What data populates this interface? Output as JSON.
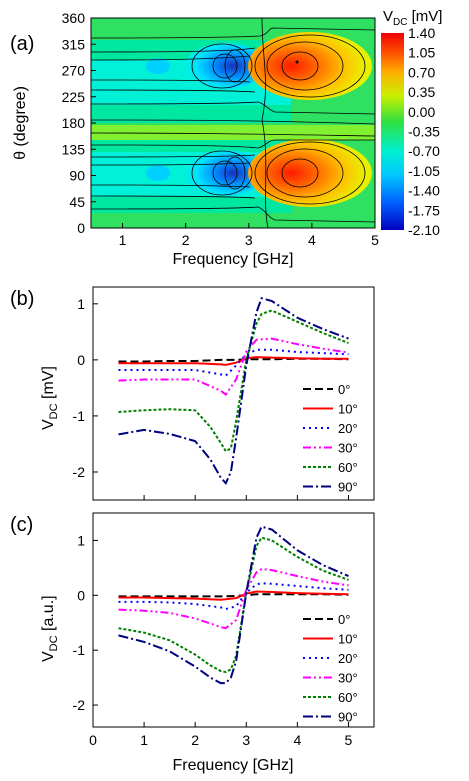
{
  "chart_data": [
    {
      "panel": "(a)",
      "type": "heatmap",
      "xlabel": "Frequency [GHz]",
      "ylabel": "θ (degree)",
      "xlim": [
        0.5,
        5
      ],
      "ylim": [
        0,
        360
      ],
      "x_ticks": [
        "1",
        "2",
        "3",
        "4",
        "5"
      ],
      "y_ticks": [
        "0",
        "45",
        "90",
        "135",
        "180",
        "225",
        "270",
        "315",
        "360"
      ],
      "colorbar": {
        "title_main": "V",
        "title_sub": "DC",
        "title_unit": " [mV]",
        "labels": [
          "1.40",
          "1.05",
          "0.70",
          "0.35",
          "0.00",
          "-0.35",
          "-0.70",
          "-1.05",
          "-1.40",
          "-1.75",
          "-2.10"
        ],
        "min": -2.1,
        "max": 1.4
      },
      "grid": false
    },
    {
      "panel": "(b)",
      "type": "line",
      "ylabel_main": "V",
      "ylabel_sub": "DC",
      "ylabel_unit": " [mV]",
      "xlim": [
        0,
        5.5
      ],
      "ylim": [
        -2.5,
        1.3
      ],
      "y_ticks": [
        "1",
        "0",
        "-1",
        "-2"
      ],
      "legend_position": "bottom-right",
      "series": [
        {
          "name": "0°",
          "color": "#000000",
          "dash": "8,4",
          "x": [
            0.5,
            1,
            1.5,
            2,
            2.5,
            2.6,
            2.8,
            3.0,
            3.2,
            3.5,
            4,
            4.5,
            5
          ],
          "y": [
            -0.03,
            -0.03,
            -0.02,
            -0.02,
            0.0,
            0.0,
            0.0,
            0.01,
            0.01,
            0.01,
            0.02,
            0.02,
            0.01
          ]
        },
        {
          "name": "10°",
          "color": "#ff0000",
          "dash": "",
          "x": [
            0.5,
            1,
            1.5,
            2,
            2.5,
            2.6,
            2.8,
            3.0,
            3.2,
            3.5,
            4,
            4.5,
            5
          ],
          "y": [
            -0.06,
            -0.06,
            -0.06,
            -0.06,
            -0.08,
            -0.09,
            -0.05,
            0.03,
            0.05,
            0.04,
            0.03,
            0.02,
            0.02
          ]
        },
        {
          "name": "20°",
          "color": "#0000ff",
          "dash": "2,4",
          "x": [
            0.5,
            1,
            1.5,
            2,
            2.5,
            2.6,
            2.8,
            3.0,
            3.2,
            3.5,
            4,
            4.5,
            5
          ],
          "y": [
            -0.18,
            -0.18,
            -0.18,
            -0.18,
            -0.26,
            -0.28,
            -0.1,
            0.1,
            0.18,
            0.18,
            0.14,
            0.12,
            0.1
          ]
        },
        {
          "name": "30°",
          "color": "#ff00ff",
          "dash": "8,3,2,3,2,3",
          "x": [
            0.5,
            1,
            1.5,
            2,
            2.5,
            2.6,
            2.8,
            3.0,
            3.2,
            3.5,
            4,
            4.5,
            5
          ],
          "y": [
            -0.37,
            -0.35,
            -0.35,
            -0.35,
            -0.55,
            -0.62,
            -0.35,
            0.15,
            0.36,
            0.38,
            0.28,
            0.2,
            0.13
          ]
        },
        {
          "name": "60°",
          "color": "#008000",
          "dash": "3,2",
          "x": [
            0.5,
            1,
            1.5,
            2,
            2.3,
            2.5,
            2.6,
            2.7,
            2.8,
            3.0,
            3.2,
            3.3,
            3.5,
            4,
            4.5,
            5
          ],
          "y": [
            -0.93,
            -0.9,
            -0.88,
            -0.9,
            -1.2,
            -1.48,
            -1.63,
            -1.58,
            -1.1,
            0.0,
            0.65,
            0.82,
            0.88,
            0.68,
            0.48,
            0.3
          ]
        },
        {
          "name": "90°",
          "color": "#000080",
          "dash": "10,3,2,3",
          "x": [
            0.5,
            1,
            1.5,
            2,
            2.3,
            2.5,
            2.6,
            2.7,
            2.8,
            3.0,
            3.2,
            3.3,
            3.5,
            4,
            4.5,
            5
          ],
          "y": [
            -1.33,
            -1.25,
            -1.32,
            -1.45,
            -1.78,
            -2.1,
            -2.2,
            -2.0,
            -1.4,
            -0.1,
            0.85,
            1.1,
            1.05,
            0.75,
            0.55,
            0.38
          ]
        }
      ]
    },
    {
      "panel": "(c)",
      "type": "line",
      "xlabel": "Frequency [GHz]",
      "ylabel_main": "V",
      "ylabel_sub": "DC",
      "ylabel_unit": " [a.u.]",
      "xlim": [
        0,
        5.5
      ],
      "ylim": [
        -2.4,
        1.5
      ],
      "x_ticks": [
        "0",
        "1",
        "2",
        "3",
        "4",
        "5"
      ],
      "y_ticks": [
        "1",
        "0",
        "-1",
        "-2"
      ],
      "legend_position": "bottom-right",
      "series": [
        {
          "name": "0°",
          "color": "#000000",
          "dash": "8,4",
          "x": [
            0.5,
            1,
            1.5,
            2,
            2.5,
            2.8,
            3.0,
            3.2,
            3.5,
            4,
            4.5,
            5
          ],
          "y": [
            -0.02,
            -0.02,
            -0.02,
            -0.02,
            -0.02,
            -0.01,
            0.0,
            0.02,
            0.02,
            0.02,
            0.02,
            0.01
          ]
        },
        {
          "name": "10°",
          "color": "#ff0000",
          "dash": "",
          "x": [
            0.5,
            1,
            1.5,
            2,
            2.5,
            2.8,
            3.0,
            3.2,
            3.5,
            4,
            4.5,
            5
          ],
          "y": [
            -0.04,
            -0.04,
            -0.05,
            -0.06,
            -0.08,
            -0.05,
            0.03,
            0.07,
            0.06,
            0.04,
            0.03,
            0.02
          ]
        },
        {
          "name": "20°",
          "color": "#0000ff",
          "dash": "2,4",
          "x": [
            0.5,
            1,
            1.5,
            2,
            2.5,
            2.6,
            2.8,
            3.0,
            3.2,
            3.3,
            3.5,
            4,
            4.5,
            5
          ],
          "y": [
            -0.12,
            -0.12,
            -0.13,
            -0.16,
            -0.22,
            -0.25,
            -0.2,
            0.05,
            0.2,
            0.22,
            0.21,
            0.17,
            0.13,
            0.1
          ]
        },
        {
          "name": "30°",
          "color": "#ff00ff",
          "dash": "8,3,2,3,2,3",
          "x": [
            0.5,
            1,
            1.5,
            2,
            2.5,
            2.6,
            2.8,
            3.0,
            3.2,
            3.3,
            3.5,
            4,
            4.5,
            5
          ],
          "y": [
            -0.26,
            -0.28,
            -0.32,
            -0.42,
            -0.58,
            -0.6,
            -0.45,
            0.1,
            0.42,
            0.48,
            0.46,
            0.35,
            0.25,
            0.18
          ]
        },
        {
          "name": "60°",
          "color": "#008000",
          "dash": "3,2",
          "x": [
            0.5,
            1,
            1.5,
            2,
            2.3,
            2.5,
            2.6,
            2.7,
            2.8,
            3.0,
            3.2,
            3.3,
            3.5,
            4,
            4.5,
            5
          ],
          "y": [
            -0.6,
            -0.68,
            -0.82,
            -1.08,
            -1.28,
            -1.38,
            -1.4,
            -1.35,
            -1.1,
            0.05,
            0.9,
            1.05,
            1.0,
            0.7,
            0.45,
            0.28
          ]
        },
        {
          "name": "90°",
          "color": "#000080",
          "dash": "10,3,2,3",
          "x": [
            0.5,
            1,
            1.5,
            2,
            2.3,
            2.5,
            2.6,
            2.7,
            2.8,
            3.0,
            3.2,
            3.3,
            3.5,
            4,
            4.5,
            5
          ],
          "y": [
            -0.73,
            -0.85,
            -1.02,
            -1.3,
            -1.5,
            -1.6,
            -1.6,
            -1.5,
            -1.2,
            0.05,
            1.05,
            1.25,
            1.2,
            0.82,
            0.55,
            0.35
          ]
        }
      ]
    }
  ]
}
